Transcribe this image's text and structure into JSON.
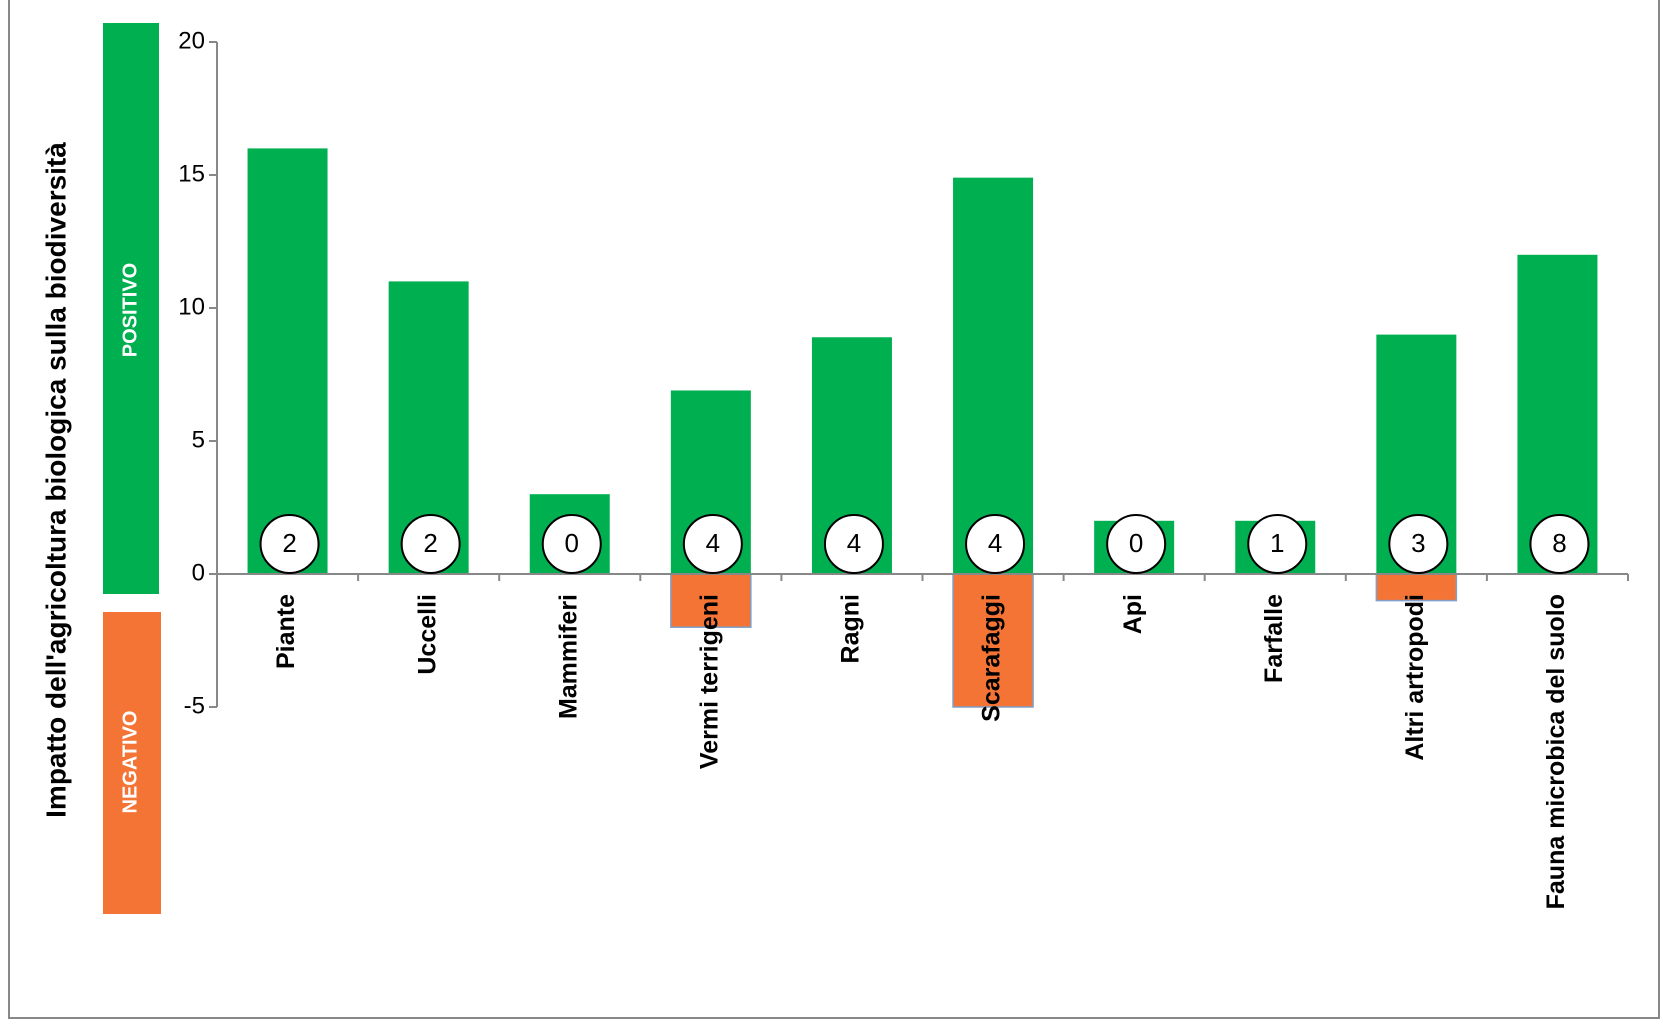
{
  "chart_data": {
    "type": "bar",
    "y_label": "Impatto dell'agricoltura biologica sulla biodiversità",
    "positive_label": "POSITIVO",
    "negative_label": "NEGATIVO",
    "categories": [
      "Piante",
      "Uccelli",
      "Mammiferi",
      "Vermi terrigeni",
      "Ragni",
      "Scarafaggi",
      "Api",
      "Farfalle",
      "Altri artropodi",
      "Fauna microbica del suolo"
    ],
    "series": [
      {
        "color": "#00b050",
        "values": [
          16,
          11,
          3,
          6.9,
          8.9,
          14.9,
          2,
          2,
          9,
          12
        ]
      },
      {
        "color": "#f47436",
        "values": [
          null,
          null,
          null,
          -2,
          null,
          -5,
          null,
          null,
          -1,
          null
        ]
      }
    ],
    "counts": [
      2,
      2,
      0,
      4,
      4,
      4,
      0,
      1,
      3,
      8
    ],
    "ylim": [
      -5,
      20
    ],
    "yticks": [
      -5,
      0,
      5,
      10,
      15,
      20
    ]
  }
}
